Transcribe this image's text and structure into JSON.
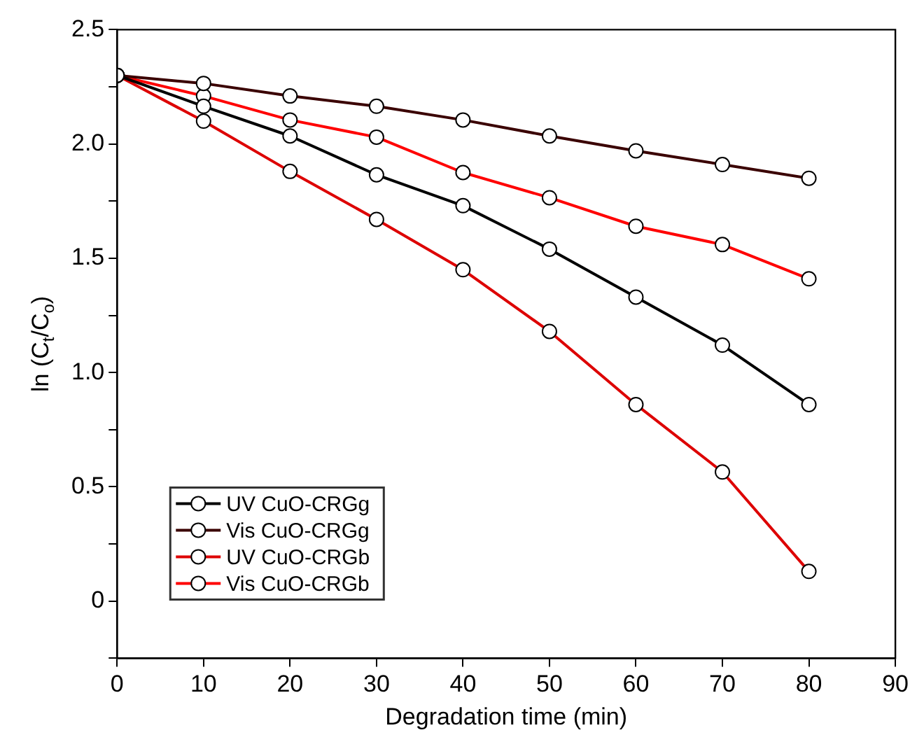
{
  "chart_data": {
    "type": "line",
    "xlabel": "Degradation time (min)",
    "ylabel": "ln (C$_{t}$/C$_{o}$)",
    "x": [
      0,
      10,
      20,
      30,
      40,
      50,
      60,
      70,
      80
    ],
    "series": [
      {
        "name": "UV CuO-CRGg",
        "color": "#000000",
        "values": [
          2.3,
          2.165,
          2.035,
          1.865,
          1.73,
          1.54,
          1.33,
          1.12,
          0.86
        ]
      },
      {
        "name": "Vis CuO-CRGg",
        "color": "#3a0000",
        "values": [
          2.3,
          2.265,
          2.21,
          2.165,
          2.105,
          2.035,
          1.97,
          1.91,
          1.85
        ]
      },
      {
        "name": "UV CuO-CRGb",
        "color": "#dd0000",
        "values": [
          2.3,
          2.1,
          1.88,
          1.67,
          1.45,
          1.18,
          0.86,
          0.565,
          0.13
        ]
      },
      {
        "name": "Vis CuO-CRGb",
        "color": "#ff0000",
        "values": [
          2.3,
          2.21,
          2.105,
          2.03,
          1.875,
          1.765,
          1.64,
          1.56,
          1.41
        ]
      }
    ],
    "xlim": [
      0,
      90
    ],
    "xticks": [
      0,
      10,
      20,
      30,
      40,
      50,
      60,
      70,
      80,
      90
    ],
    "ylim": [
      -0.25,
      2.5
    ],
    "yticks": [
      {
        "value": -0.25,
        "label": null
      },
      0,
      {
        "value": 0.25,
        "label": null
      },
      0.5,
      {
        "value": 0.75,
        "label": null
      },
      {
        "value": 1,
        "label": "1.0"
      },
      {
        "value": 1.25,
        "label": null
      },
      1.5,
      {
        "value": 1.75,
        "label": null
      },
      {
        "value": 2,
        "label": "2.0"
      },
      {
        "value": 2.25,
        "label": null
      },
      2.5
    ],
    "grid": false,
    "legend": "bottom left",
    "marker": "circle",
    "line_style": "solid"
  }
}
